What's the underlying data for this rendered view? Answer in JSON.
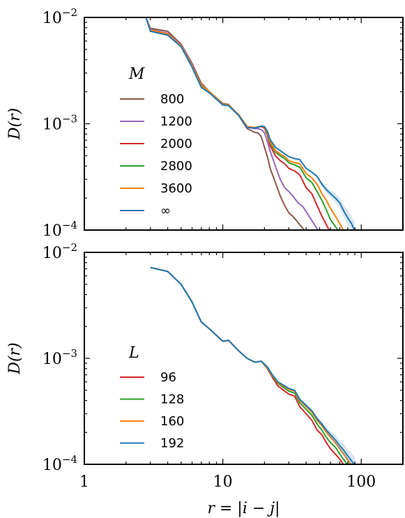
{
  "chart_data": [
    {
      "type": "line",
      "panel": "top",
      "x_scale": "log",
      "y_scale": "log",
      "xlim": [
        1,
        200
      ],
      "ylim": [
        0.0001,
        0.01
      ],
      "ylabel": "D(r)",
      "xlabel": "",
      "xtick_labels": [
        "",
        "",
        ""
      ],
      "ytick_labels": [
        {
          "base": "10",
          "exp": "−2"
        },
        {
          "base": "10",
          "exp": "−3"
        },
        {
          "base": "10",
          "exp": "−4"
        }
      ],
      "legend": {
        "title": "M",
        "position": "left",
        "labels": [
          "800",
          "1200",
          "2000",
          "2800",
          "3600",
          "∞"
        ]
      },
      "series": [
        {
          "name": "800",
          "color": "#8c564b",
          "x": [
            2.8,
            3,
            4,
            5,
            6,
            7,
            8,
            10,
            11,
            13,
            15,
            17,
            18,
            19,
            20,
            21,
            22,
            24,
            26,
            28,
            30,
            32,
            34,
            36,
            38,
            40
          ],
          "y": [
            0.0098,
            0.0079,
            0.0074,
            0.0056,
            0.0037,
            0.0024,
            0.002,
            0.00155,
            0.00152,
            0.0012,
            0.0009,
            0.00083,
            0.00082,
            0.00075,
            0.0006,
            0.00049,
            0.00038,
            0.00028,
            0.00021,
            0.00017,
            0.000145,
            0.000135,
            0.000123,
            0.000112,
            0.000103,
            9.5e-05
          ]
        },
        {
          "name": "1200",
          "color": "#9467bd",
          "x": [
            2.8,
            3,
            4,
            5,
            6,
            7,
            8,
            10,
            11,
            13,
            15,
            17,
            18,
            19,
            20,
            21,
            22,
            24,
            26,
            28,
            30,
            32,
            35,
            38,
            42,
            46,
            50
          ],
          "y": [
            0.0098,
            0.0077,
            0.0071,
            0.0055,
            0.0036,
            0.0023,
            0.002,
            0.00152,
            0.0015,
            0.00122,
            0.00093,
            0.0009,
            0.0009,
            0.00088,
            0.00082,
            0.00068,
            0.00055,
            0.0004,
            0.0003,
            0.00025,
            0.00023,
            0.00021,
            0.00018,
            0.000165,
            0.000135,
            0.000112,
            9.5e-05
          ]
        },
        {
          "name": "2000",
          "color": "#d62728",
          "x": [
            2.8,
            3,
            4,
            5,
            6,
            7,
            8,
            10,
            11,
            13,
            15,
            17,
            18,
            19,
            20,
            21,
            22,
            24,
            26,
            28,
            30,
            33,
            36,
            40,
            44,
            48,
            52,
            56,
            60
          ],
          "y": [
            0.0098,
            0.0076,
            0.007,
            0.0054,
            0.0035,
            0.0023,
            0.002,
            0.00152,
            0.0015,
            0.00122,
            0.00094,
            0.00092,
            0.00093,
            0.00094,
            0.00091,
            0.00078,
            0.00062,
            0.0005,
            0.00045,
            0.00042,
            0.00038,
            0.00036,
            0.00033,
            0.00025,
            0.00022,
            0.00017,
            0.000135,
            0.000112,
            9.5e-05
          ]
        },
        {
          "name": "2800",
          "color": "#2ca02c",
          "x": [
            2.8,
            3,
            4,
            5,
            6,
            7,
            8,
            10,
            11,
            13,
            15,
            17,
            18,
            19,
            20,
            21,
            22,
            24,
            26,
            28,
            30,
            33,
            36,
            40,
            44,
            48,
            52,
            56,
            60,
            65,
            70
          ],
          "y": [
            0.0098,
            0.0076,
            0.007,
            0.0054,
            0.0035,
            0.0023,
            0.002,
            0.00152,
            0.0015,
            0.00122,
            0.00094,
            0.00092,
            0.00093,
            0.00095,
            0.00093,
            0.00081,
            0.00066,
            0.00054,
            0.0005,
            0.00047,
            0.00043,
            0.00041,
            0.00039,
            0.00031,
            0.00028,
            0.00023,
            0.00019,
            0.000155,
            0.000125,
            0.000108,
            9.5e-05
          ]
        },
        {
          "name": "3600",
          "color": "#ff7f0e",
          "x": [
            2.8,
            3,
            4,
            5,
            6,
            7,
            8,
            10,
            11,
            13,
            15,
            17,
            18,
            19,
            20,
            21,
            22,
            24,
            26,
            28,
            30,
            33,
            36,
            40,
            44,
            48,
            52,
            56,
            60,
            65,
            70,
            75
          ],
          "y": [
            0.0098,
            0.0076,
            0.007,
            0.0054,
            0.0035,
            0.0023,
            0.002,
            0.00152,
            0.0015,
            0.00122,
            0.00094,
            0.00092,
            0.00093,
            0.00095,
            0.00093,
            0.00083,
            0.00068,
            0.00056,
            0.00052,
            0.00049,
            0.00045,
            0.00043,
            0.00042,
            0.00034,
            0.00031,
            0.00027,
            0.00022,
            0.00019,
            0.00016,
            0.000135,
            0.000115,
            9.8e-05
          ]
        },
        {
          "name": "∞",
          "color": "#1f77b4",
          "x": [
            2.8,
            3,
            4,
            5,
            6,
            7,
            8,
            10,
            11,
            13,
            15,
            17,
            18,
            19,
            20,
            21,
            22,
            24,
            26,
            28,
            30,
            33,
            36,
            40,
            44,
            48,
            52,
            56,
            60,
            65,
            70,
            75,
            80,
            85,
            90
          ],
          "y": [
            0.0098,
            0.0074,
            0.0068,
            0.0053,
            0.0034,
            0.0022,
            0.00195,
            0.0015,
            0.00148,
            0.0012,
            0.00092,
            0.00091,
            0.00093,
            0.00095,
            0.00094,
            0.00085,
            0.00071,
            0.0006,
            0.00056,
            0.00052,
            0.00049,
            0.00047,
            0.00046,
            0.00038,
            0.00035,
            0.00032,
            0.00027,
            0.00024,
            0.00022,
            0.0002,
            0.00018,
            0.00015,
            0.00013,
            0.000115,
            9.8e-05
          ]
        }
      ]
    },
    {
      "type": "line",
      "panel": "bottom",
      "x_scale": "log",
      "y_scale": "log",
      "xlim": [
        1,
        200
      ],
      "ylim": [
        0.0001,
        0.01
      ],
      "ylabel": "D(r)",
      "xlabel": "r = |i − j|",
      "xtick_labels": [
        "1",
        "10",
        "100"
      ],
      "ytick_labels": [
        {
          "base": "10",
          "exp": "−2"
        },
        {
          "base": "10",
          "exp": "−3"
        },
        {
          "base": "10",
          "exp": "−4"
        }
      ],
      "legend": {
        "title": "L",
        "position": "left",
        "labels": [
          "96",
          "128",
          "160",
          "192"
        ]
      },
      "series": [
        {
          "name": "96",
          "color": "#d62728",
          "x": [
            3,
            4,
            5,
            6,
            7,
            8,
            10,
            11,
            13,
            15,
            17,
            19,
            21,
            23,
            25,
            28,
            30,
            33,
            36,
            40,
            44,
            48,
            52,
            56,
            60,
            65,
            70,
            75
          ],
          "y": [
            0.0072,
            0.0066,
            0.005,
            0.0034,
            0.0022,
            0.0019,
            0.00145,
            0.00148,
            0.00118,
            0.001,
            0.00092,
            0.00094,
            0.0008,
            0.00065,
            0.00055,
            0.00049,
            0.00046,
            0.00044,
            0.00035,
            0.0003,
            0.00026,
            0.00021,
            0.00019,
            0.00016,
            0.00014,
            0.000125,
            0.000112,
            9.8e-05
          ]
        },
        {
          "name": "128",
          "color": "#2ca02c",
          "x": [
            3,
            4,
            5,
            6,
            7,
            8,
            10,
            11,
            13,
            15,
            17,
            19,
            21,
            23,
            25,
            28,
            30,
            33,
            36,
            40,
            44,
            48,
            52,
            56,
            60,
            65,
            70,
            75,
            80
          ],
          "y": [
            0.0072,
            0.0066,
            0.005,
            0.0034,
            0.0022,
            0.0019,
            0.00145,
            0.00148,
            0.00118,
            0.001,
            0.00092,
            0.00094,
            0.00081,
            0.00067,
            0.00058,
            0.00052,
            0.00049,
            0.00047,
            0.00038,
            0.00033,
            0.00029,
            0.00024,
            0.00021,
            0.00018,
            0.00016,
            0.000145,
            0.000125,
            0.00011,
            9.8e-05
          ]
        },
        {
          "name": "160",
          "color": "#ff7f0e",
          "x": [
            3,
            4,
            5,
            6,
            7,
            8,
            10,
            11,
            13,
            15,
            17,
            19,
            21,
            23,
            25,
            28,
            30,
            33,
            36,
            40,
            44,
            48,
            52,
            56,
            60,
            65,
            70,
            75,
            80,
            85
          ],
          "y": [
            0.0072,
            0.0066,
            0.005,
            0.0034,
            0.0022,
            0.0019,
            0.00145,
            0.00148,
            0.00118,
            0.001,
            0.00092,
            0.00094,
            0.00082,
            0.00068,
            0.00059,
            0.00054,
            0.00051,
            0.00049,
            0.0004,
            0.00035,
            0.00031,
            0.00026,
            0.00023,
            0.0002,
            0.00018,
            0.00016,
            0.00014,
            0.000125,
            0.00011,
            9.8e-05
          ]
        },
        {
          "name": "192",
          "color": "#1f77b4",
          "x": [
            3,
            4,
            5,
            6,
            7,
            8,
            10,
            11,
            13,
            15,
            17,
            19,
            21,
            23,
            25,
            28,
            30,
            33,
            36,
            40,
            44,
            48,
            52,
            56,
            60,
            65,
            70,
            75,
            80,
            85,
            90
          ],
          "y": [
            0.0072,
            0.0066,
            0.005,
            0.0034,
            0.0022,
            0.0019,
            0.00145,
            0.00148,
            0.00118,
            0.001,
            0.00092,
            0.00094,
            0.00083,
            0.00069,
            0.0006,
            0.00055,
            0.00052,
            0.0005,
            0.00041,
            0.00036,
            0.00032,
            0.00027,
            0.00024,
            0.00021,
            0.00019,
            0.00017,
            0.00015,
            0.000135,
            0.00012,
            0.000108,
            9.8e-05
          ]
        }
      ]
    }
  ]
}
